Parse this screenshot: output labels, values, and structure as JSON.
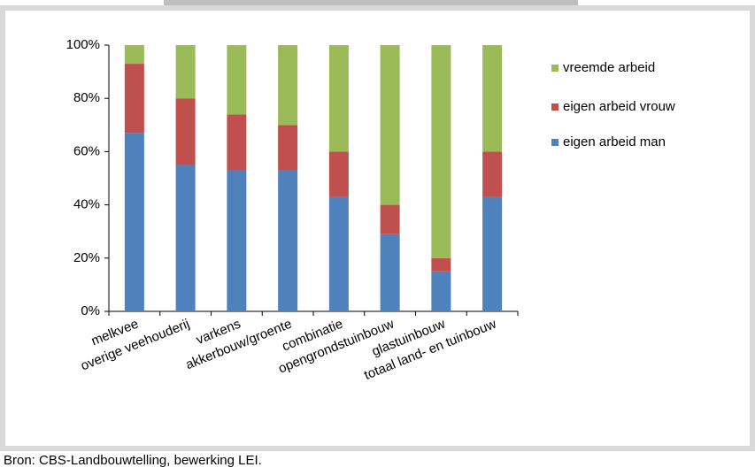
{
  "chart_data": {
    "type": "bar",
    "stacked": true,
    "categories": [
      "melkvee",
      "overige veehouderij",
      "varkens",
      "akkerbouw/groente",
      "combinatie",
      "opengrondstuinbouw",
      "glastuinbouw",
      "totaal land- en tuinbouw"
    ],
    "series": [
      {
        "name": "eigen arbeid man",
        "color": "#4f81bd",
        "values": [
          67,
          55,
          53,
          53,
          43,
          29,
          15,
          43
        ]
      },
      {
        "name": "eigen arbeid vrouw",
        "color": "#c0504d",
        "values": [
          26,
          25,
          21,
          17,
          17,
          11,
          5,
          17
        ]
      },
      {
        "name": "vreemde arbeid",
        "color": "#9bbb59",
        "values": [
          7,
          20,
          26,
          30,
          40,
          60,
          80,
          40
        ]
      }
    ],
    "ylim": [
      0,
      100
    ],
    "yticks": [
      {
        "value": 0,
        "label": "0%"
      },
      {
        "value": 20,
        "label": "20%"
      },
      {
        "value": 40,
        "label": "40%"
      },
      {
        "value": 60,
        "label": "60%"
      },
      {
        "value": 80,
        "label": "80%"
      },
      {
        "value": 100,
        "label": "100%"
      }
    ],
    "grid": false,
    "legend": "right",
    "source": "Bron: CBS-Landbouwtelling, bewerking LEI."
  }
}
